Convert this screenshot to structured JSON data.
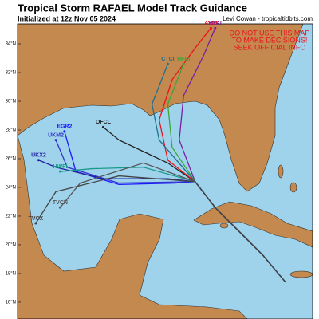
{
  "map": {
    "title": "Tropical Storm RAFAEL Model Track Guidance",
    "subtitle": "Initialized at 12z Nov 05 2024",
    "credit": "Levi Cowan - tropicaltidbits.com",
    "warning": [
      "DO NOT USE THIS MAP",
      "TO MAKE DECISIONS!",
      "SEEK OFFICIAL INFO"
    ],
    "lat_range": [
      14.83,
      35.39
    ],
    "lon_range": [
      -97.17,
      -76.61
    ],
    "lat_ticks": [
      {
        "value": 34,
        "label": "34°N"
      },
      {
        "value": 32,
        "label": "32°N"
      },
      {
        "value": 30,
        "label": "30°N"
      },
      {
        "value": 28,
        "label": "28°N"
      },
      {
        "value": 26,
        "label": "26°N"
      },
      {
        "value": 24,
        "label": "24°N"
      },
      {
        "value": 22,
        "label": "22°N"
      },
      {
        "value": 20,
        "label": "20°N"
      },
      {
        "value": 18,
        "label": "18°N"
      },
      {
        "value": 16,
        "label": "16°N"
      }
    ],
    "tracks": [
      {
        "name": "OFCL",
        "color": "#222222",
        "lat": [
          17.4,
          19.3,
          20.9,
          22.6,
          24.4,
          25.7,
          26.5,
          27.3,
          28.2
        ],
        "lon": [
          -78.5,
          -80.1,
          -81.7,
          -83.4,
          -84.8,
          -86.7,
          -88.4,
          -90.1,
          -91.2
        ]
      },
      {
        "name": "AVNI",
        "color": "#e8141c",
        "lat": [
          17.4,
          19.3,
          20.9,
          22.6,
          24.4,
          25.9,
          28.7,
          31.5,
          33.7,
          35.1
        ],
        "lon": [
          -78.5,
          -80.1,
          -81.7,
          -83.4,
          -84.8,
          -86.7,
          -87.3,
          -86.4,
          -84.8,
          -83.7
        ]
      },
      {
        "name": "HFAI",
        "color": "#7a1fa2",
        "lat": [
          17.4,
          19.3,
          20.9,
          22.6,
          24.4,
          27.3,
          30.4,
          33.2,
          35.1
        ],
        "lon": [
          -78.5,
          -80.1,
          -81.7,
          -83.4,
          -84.8,
          -85.9,
          -85.6,
          -84.2,
          -83.4
        ]
      },
      {
        "name": "HFBI",
        "color": "#3aa63a",
        "lat": [
          17.4,
          19.3,
          20.9,
          22.6,
          24.4,
          26.8,
          29.8,
          32.6
        ],
        "lon": [
          -78.5,
          -80.1,
          -81.7,
          -83.4,
          -84.8,
          -86.4,
          -86.7,
          -85.6
        ]
      },
      {
        "name": "CTCI",
        "color": "#1f6f8b",
        "lat": [
          17.4,
          19.3,
          20.9,
          22.6,
          24.4,
          27.3,
          29.8,
          32.6
        ],
        "lon": [
          -78.5,
          -80.1,
          -81.7,
          -83.4,
          -84.8,
          -87.3,
          -87.8,
          -86.7
        ]
      },
      {
        "name": "EGR2",
        "color": "#1a1aff",
        "lat": [
          17.4,
          19.3,
          20.9,
          22.6,
          24.4,
          24.3,
          24.2,
          25.1,
          27.9
        ],
        "lon": [
          -78.5,
          -80.1,
          -81.7,
          -83.4,
          -84.8,
          -86.2,
          -90.1,
          -93.1,
          -93.9
        ]
      },
      {
        "name": "UKM2",
        "color": "#3333cc",
        "lat": [
          17.4,
          19.3,
          20.9,
          22.6,
          24.4,
          24.3,
          25.4,
          27.3
        ],
        "lon": [
          -78.5,
          -80.1,
          -81.7,
          -83.4,
          -84.8,
          -90.1,
          -93.7,
          -94.5
        ]
      },
      {
        "name": "UKX2",
        "color": "#2020a0",
        "lat": [
          17.4,
          19.3,
          20.9,
          22.6,
          24.4,
          24.6,
          24.6,
          25.4,
          25.9
        ],
        "lon": [
          -78.5,
          -80.1,
          -81.7,
          -83.4,
          -84.8,
          -86.7,
          -91.2,
          -94.5,
          -95.7
        ]
      },
      {
        "name": "HWFI",
        "color": "#1a9a8a",
        "lat": [
          17.4,
          19.3,
          20.9,
          22.6,
          24.4,
          25.4,
          25.3,
          25.1
        ],
        "lon": [
          -78.5,
          -80.1,
          -81.7,
          -83.4,
          -84.8,
          -88.4,
          -92.0,
          -94.2
        ]
      },
      {
        "name": "TVCN",
        "color": "#555555",
        "lat": [
          17.4,
          19.3,
          20.9,
          22.6,
          24.4,
          25.7,
          24.3,
          22.6
        ],
        "lon": [
          -78.5,
          -80.1,
          -81.7,
          -83.4,
          -84.8,
          -88.4,
          -92.8,
          -94.2
        ]
      },
      {
        "name": "TVCX",
        "color": "#444444",
        "lat": [
          17.4,
          19.3,
          20.9,
          22.6,
          24.4,
          24.8,
          23.7,
          21.5
        ],
        "lon": [
          -78.5,
          -80.1,
          -81.7,
          -83.4,
          -84.8,
          -90.1,
          -94.5,
          -95.9
        ]
      }
    ]
  }
}
